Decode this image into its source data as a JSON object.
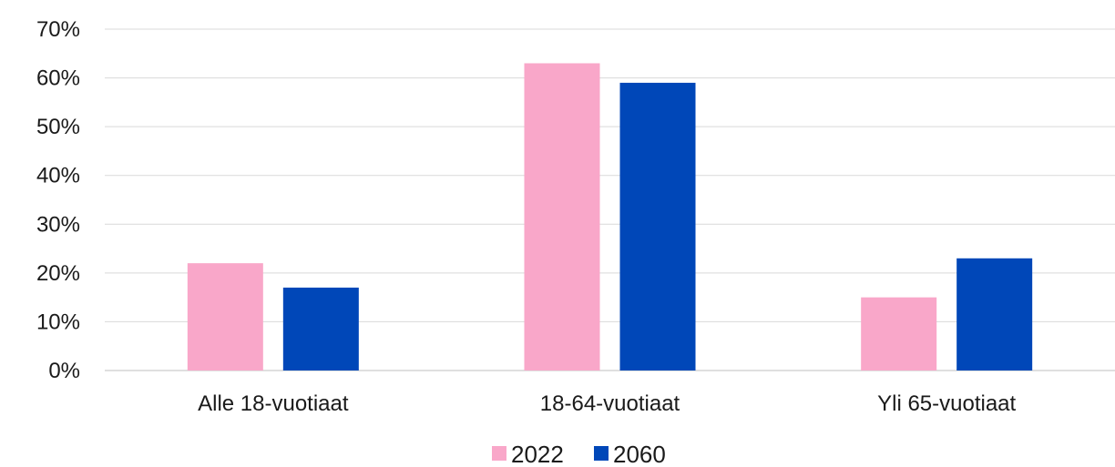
{
  "chart_data": {
    "type": "bar",
    "categories": [
      "Alle 18-vuotiaat",
      "18-64-vuotiaat",
      "Yli 65-vuotiaat"
    ],
    "series": [
      {
        "name": "2022",
        "values": [
          22,
          63,
          15
        ],
        "color": "#f9a7c9"
      },
      {
        "name": "2060",
        "values": [
          17,
          59,
          23
        ],
        "color": "#0047b8"
      }
    ],
    "yticks": [
      "0%",
      "10%",
      "20%",
      "30%",
      "40%",
      "50%",
      "60%",
      "70%"
    ],
    "ylim": [
      0,
      70
    ],
    "grid": true,
    "legend_position": "bottom"
  }
}
